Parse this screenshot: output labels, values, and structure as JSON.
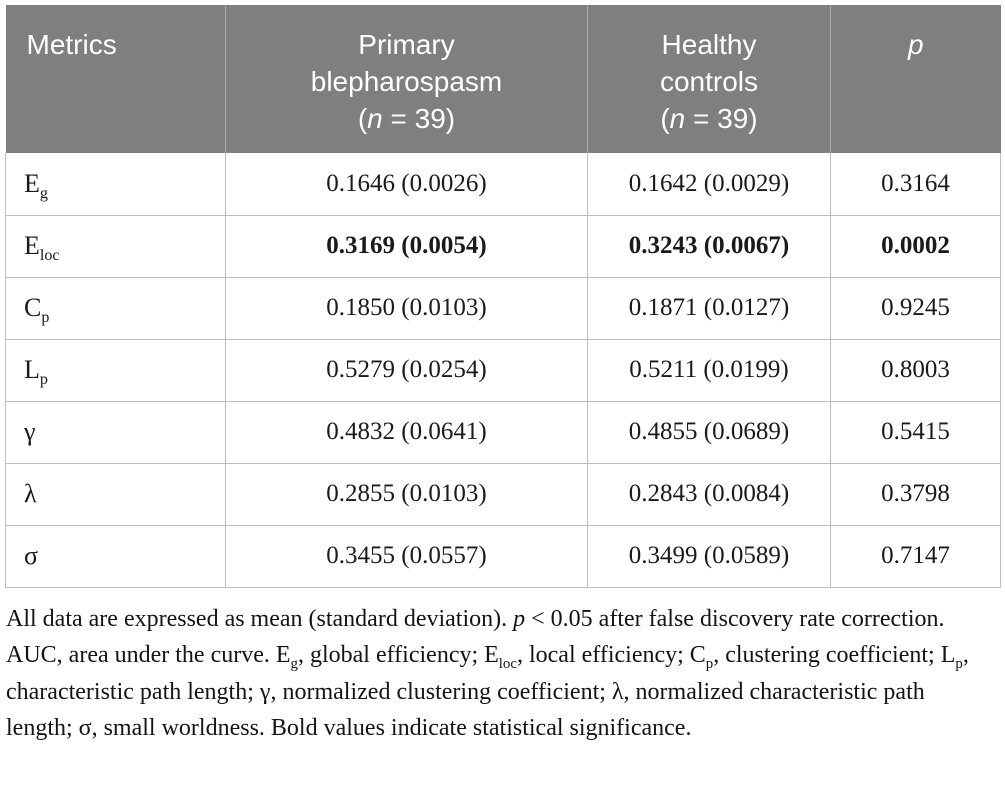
{
  "colors": {
    "header_bg": "#7f7f7f",
    "header_divider": "#a8a8a8",
    "body_border": "#bdbdbd",
    "text": "#1a1a1a",
    "footnote_text": "#141414"
  },
  "table": {
    "header": {
      "metrics": "Metrics",
      "col_primary": [
        {
          "t": "Primary"
        },
        {
          "br": true
        },
        {
          "t": "blepharospasm"
        },
        {
          "br": true
        },
        {
          "t": "("
        },
        {
          "t": "n",
          "i": true
        },
        {
          "t": " = 39)"
        }
      ],
      "col_healthy": [
        {
          "t": "Healthy"
        },
        {
          "br": true
        },
        {
          "t": "controls"
        },
        {
          "br": true
        },
        {
          "t": "("
        },
        {
          "t": "n",
          "i": true
        },
        {
          "t": " = 39)"
        }
      ],
      "col_p": [
        {
          "t": "p",
          "i": true
        }
      ]
    },
    "rows": [
      {
        "label": [
          {
            "t": "E"
          },
          {
            "t": "g",
            "sub": true
          }
        ],
        "primary": "0.1646 (0.0026)",
        "healthy": "0.1642 (0.0029)",
        "p": "0.3164",
        "significant": false
      },
      {
        "label": [
          {
            "t": "E"
          },
          {
            "t": "loc",
            "sub": true
          }
        ],
        "primary": "0.3169 (0.0054)",
        "healthy": "0.3243 (0.0067)",
        "p": "0.0002",
        "significant": true
      },
      {
        "label": [
          {
            "t": "C"
          },
          {
            "t": "p",
            "sub": true
          }
        ],
        "primary": "0.1850 (0.0103)",
        "healthy": "0.1871 (0.0127)",
        "p": "0.9245",
        "significant": false
      },
      {
        "label": [
          {
            "t": "L"
          },
          {
            "t": "p",
            "sub": true
          }
        ],
        "primary": "0.5279 (0.0254)",
        "healthy": "0.5211 (0.0199)",
        "p": "0.8003",
        "significant": false
      },
      {
        "label": [
          {
            "t": "γ"
          }
        ],
        "primary": "0.4832 (0.0641)",
        "healthy": "0.4855 (0.0689)",
        "p": "0.5415",
        "significant": false
      },
      {
        "label": [
          {
            "t": "λ"
          }
        ],
        "primary": "0.2855 (0.0103)",
        "healthy": "0.2843 (0.0084)",
        "p": "0.3798",
        "significant": false
      },
      {
        "label": [
          {
            "t": "σ"
          }
        ],
        "primary": "0.3455 (0.0557)",
        "healthy": "0.3499 (0.0589)",
        "p": "0.7147",
        "significant": false
      }
    ]
  },
  "footnote": [
    {
      "t": "All data are expressed as mean (standard deviation). "
    },
    {
      "t": "p",
      "i": true
    },
    {
      "t": " < 0.05 after false discovery rate correction. AUC, area under the curve. E"
    },
    {
      "t": "g",
      "sub": true
    },
    {
      "t": ", global efficiency; E"
    },
    {
      "t": "loc",
      "sub": true
    },
    {
      "t": ", local efficiency; C"
    },
    {
      "t": "p",
      "sub": true
    },
    {
      "t": ", clustering coefficient; L"
    },
    {
      "t": "p",
      "sub": true
    },
    {
      "t": ", characteristic path length; γ, normalized clustering coefficient; λ, normalized characteristic path length; σ, small worldness. Bold values indicate statistical significance."
    }
  ]
}
